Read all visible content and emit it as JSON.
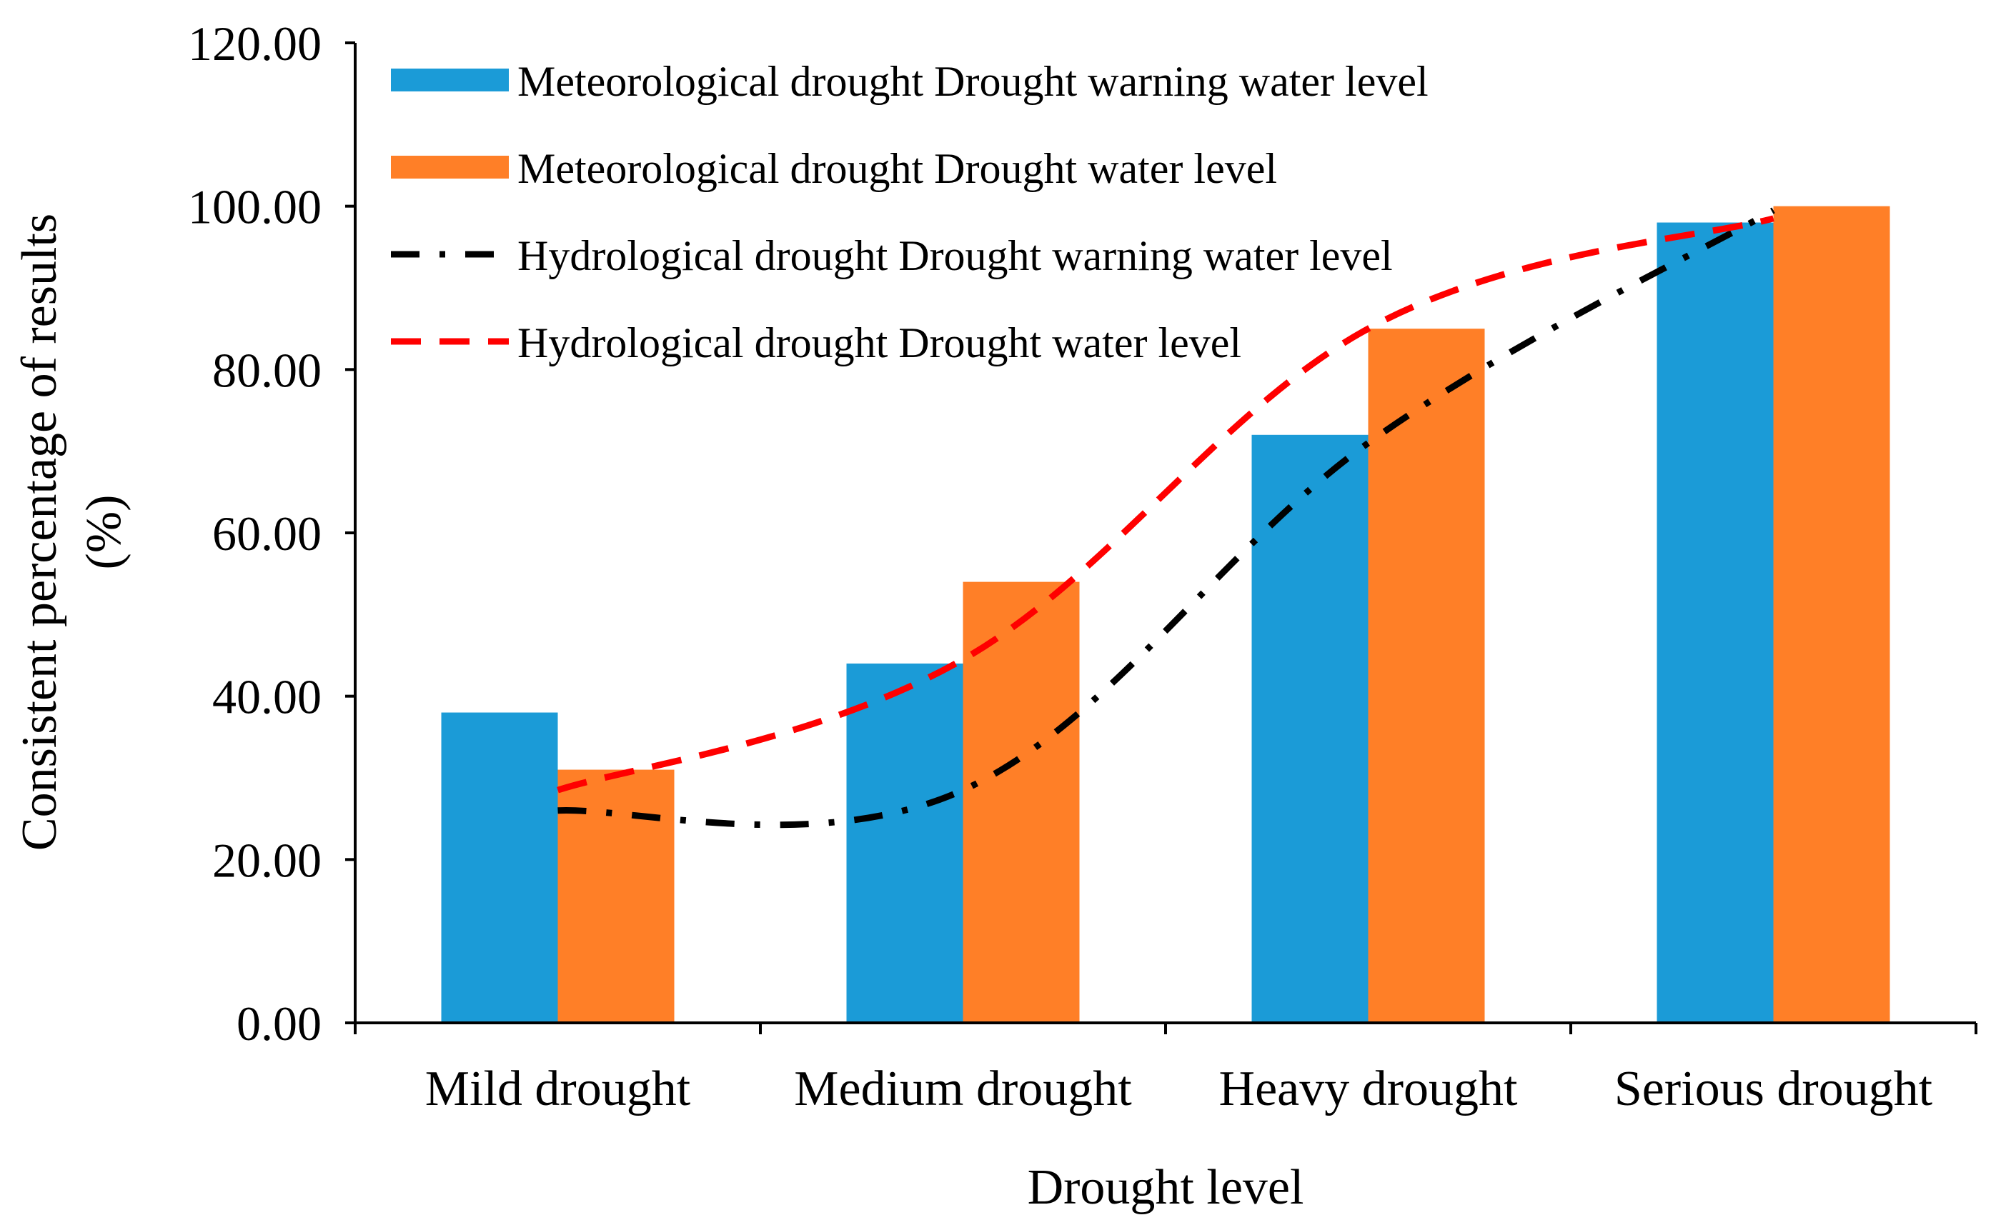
{
  "chart_data": {
    "type": "bar",
    "title": "",
    "xlabel": "Drought level",
    "ylabel_line1": "Consistent percentage of results",
    "ylabel_line2": "(%)",
    "ylim": [
      0,
      120
    ],
    "yticks": [
      0,
      20,
      40,
      60,
      80,
      100,
      120
    ],
    "ytick_labels": [
      "0.00",
      "20.00",
      "40.00",
      "60.00",
      "80.00",
      "100.00",
      "120.00"
    ],
    "categories": [
      "Mild drought",
      "Medium drought",
      "Heavy drought",
      "Serious drought"
    ],
    "grid": false,
    "legend_position": "top-left",
    "series": [
      {
        "name": "Meteorological drought Drought warning water level",
        "kind": "bar",
        "color": "#1B9BD7",
        "values": [
          38,
          44,
          72,
          98
        ]
      },
      {
        "name": "Meteorological drought Drought water level",
        "kind": "bar",
        "color": "#FF7F27",
        "values": [
          31,
          54,
          85,
          100
        ]
      },
      {
        "name": "Hydrological drought Drought warning water level",
        "kind": "line",
        "style": "dash-dot",
        "color": "#000000",
        "values": [
          26,
          28.5,
          71,
          99.5
        ]
      },
      {
        "name": "Hydrological drought Drought water level",
        "kind": "line",
        "style": "dashed",
        "color": "#FF0000",
        "values": [
          28.5,
          44.5,
          85,
          98.5
        ]
      }
    ]
  }
}
